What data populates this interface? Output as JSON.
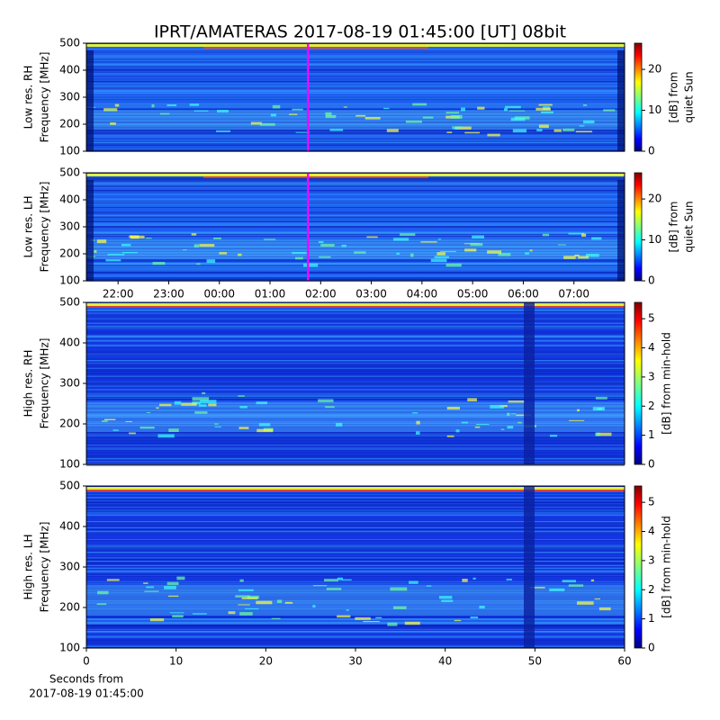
{
  "chart_data": [
    {
      "type": "heatmap",
      "title": "IPRT/AMATERAS 2017-08-19 01:45:00 [UT]   08bit",
      "ylabel": [
        "Low res. RH",
        "Frequency [MHz]"
      ],
      "ylim": [
        100,
        500
      ],
      "yticks": [
        100,
        200,
        300,
        400,
        500
      ],
      "xlim": [
        21.375,
        32
      ],
      "colormap": "jet",
      "vline": {
        "x": 25.75,
        "color": "#ff00ff"
      },
      "colorbar": {
        "label": [
          "[dB] from",
          "quiet Sun"
        ],
        "lim": [
          0,
          26.4
        ],
        "ticks": [
          0,
          10,
          20
        ]
      }
    },
    {
      "type": "heatmap",
      "ylabel": [
        "Low res. LH",
        "Frequency [MHz]"
      ],
      "ylim": [
        100,
        500
      ],
      "yticks": [
        100,
        200,
        300,
        400,
        500
      ],
      "xlim": [
        21.375,
        32
      ],
      "colormap": "jet",
      "xticks": [
        {
          "value": 22,
          "label": "22:00"
        },
        {
          "value": 23,
          "label": "23:00"
        },
        {
          "value": 24,
          "label": "00:00"
        },
        {
          "value": 25,
          "label": "01:00"
        },
        {
          "value": 26,
          "label": "02:00"
        },
        {
          "value": 27,
          "label": "03:00"
        },
        {
          "value": 28,
          "label": "04:00"
        },
        {
          "value": 29,
          "label": "05:00"
        },
        {
          "value": 30,
          "label": "06:00"
        },
        {
          "value": 31,
          "label": "07:00"
        }
      ],
      "vline": {
        "x": 25.75,
        "color": "#ff00ff"
      },
      "colorbar": {
        "label": [
          "[dB] from",
          "quiet Sun"
        ],
        "lim": [
          0,
          26.4
        ],
        "ticks": [
          0,
          10,
          20
        ]
      }
    },
    {
      "type": "heatmap",
      "ylabel": [
        "High res. RH",
        "Frequency [MHz]"
      ],
      "ylim": [
        100,
        500
      ],
      "yticks": [
        100,
        200,
        300,
        400,
        500
      ],
      "xlim": [
        0,
        60
      ],
      "colormap": "jet",
      "colorbar": {
        "label": [
          "[dB] from min-hold"
        ],
        "lim": [
          0,
          5.56
        ],
        "ticks": [
          0,
          1,
          2,
          3,
          4,
          5
        ]
      }
    },
    {
      "type": "heatmap",
      "ylabel": [
        "High res. LH",
        "Frequency [MHz]"
      ],
      "ylim": [
        100,
        500
      ],
      "yticks": [
        100,
        200,
        300,
        400,
        500
      ],
      "xlim": [
        0,
        60
      ],
      "xticks": [
        0,
        10,
        20,
        30,
        40,
        50,
        60
      ],
      "colormap": "jet",
      "xlabel": [
        "Seconds from",
        "2017-08-19 01:45:00"
      ],
      "colorbar": {
        "label": [
          "[dB] from min-hold"
        ],
        "lim": [
          0,
          5.56
        ],
        "ticks": [
          0,
          1,
          2,
          3,
          4,
          5
        ]
      }
    }
  ]
}
